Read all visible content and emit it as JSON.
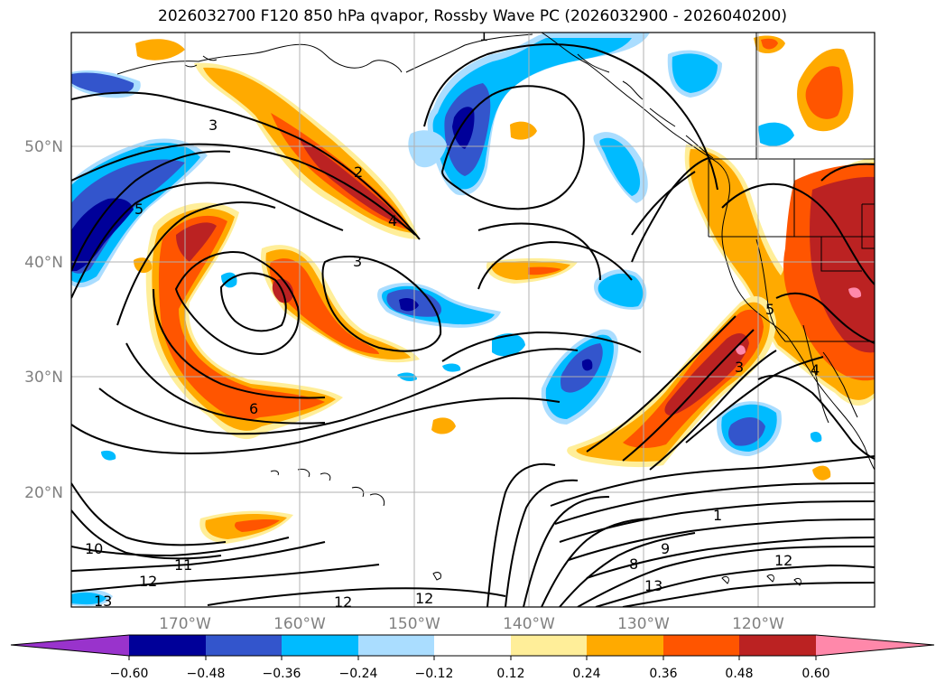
{
  "title": "2026032700 F120 850 hPa qvapor, Rossby Wave PC (2026032900 - 2026040200)",
  "map": {
    "lat_labels": [
      "50°N",
      "40°N",
      "30°N",
      "20°N"
    ],
    "lon_labels": [
      "170°W",
      "160°W",
      "150°W",
      "140°W",
      "130°W",
      "120°W"
    ],
    "contour_labels": [
      "1",
      "3",
      "2",
      "4",
      "5",
      "3",
      "6",
      "5",
      "3",
      "4",
      "1",
      "10",
      "11",
      "12",
      "12",
      "12",
      "13",
      "13",
      "8",
      "9",
      "12"
    ]
  },
  "colorbar": {
    "colors": [
      "#9933cc",
      "#000099",
      "#3355cc",
      "#00bbff",
      "#aaddff",
      "#ffffff",
      "#ffee99",
      "#ffaa00",
      "#ff5500",
      "#bb2222",
      "#ff88aa"
    ],
    "tick_labels": [
      "−0.60",
      "−0.48",
      "−0.36",
      "−0.24",
      "−0.12",
      "0.12",
      "0.24",
      "0.36",
      "0.48",
      "0.60"
    ]
  }
}
